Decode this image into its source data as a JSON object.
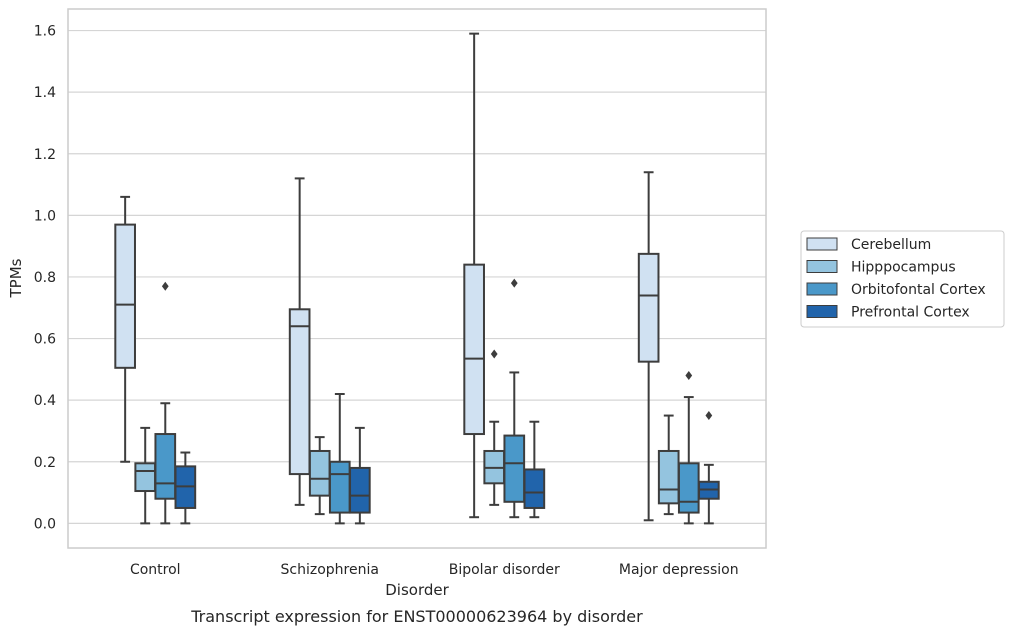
{
  "caption": "Transcript expression for ENST00000623964 by disorder",
  "chart_data": {
    "type": "box",
    "title": "",
    "xlabel": "Disorder",
    "ylabel": "TPMs",
    "ylim": [
      -0.08,
      1.67
    ],
    "yticks": [
      0.0,
      0.2,
      0.4,
      0.6,
      0.8,
      1.0,
      1.2,
      1.4,
      1.6
    ],
    "ytick_labels": [
      "0.0",
      "0.2",
      "0.4",
      "0.6",
      "0.8",
      "1.0",
      "1.2",
      "1.4",
      "1.6"
    ],
    "grid": "horizontal",
    "legend_position": "right",
    "categories": [
      "Control",
      "Schizophrenia",
      "Bipolar disorder",
      "Major depression"
    ],
    "series": [
      {
        "name": "Cerebellum",
        "color": "#d0e1f2",
        "boxes": [
          {
            "whisker_low": 0.2,
            "q1": 0.505,
            "median": 0.71,
            "q3": 0.97,
            "whisker_high": 1.06,
            "outliers": []
          },
          {
            "whisker_low": 0.06,
            "q1": 0.16,
            "median": 0.64,
            "q3": 0.695,
            "whisker_high": 1.12,
            "outliers": []
          },
          {
            "whisker_low": 0.02,
            "q1": 0.29,
            "median": 0.535,
            "q3": 0.84,
            "whisker_high": 1.59,
            "outliers": []
          },
          {
            "whisker_low": 0.01,
            "q1": 0.525,
            "median": 0.74,
            "q3": 0.875,
            "whisker_high": 1.14,
            "outliers": []
          }
        ]
      },
      {
        "name": "Hipppocampus",
        "color": "#94c4df",
        "boxes": [
          {
            "whisker_low": 0.0,
            "q1": 0.105,
            "median": 0.17,
            "q3": 0.195,
            "whisker_high": 0.31,
            "outliers": []
          },
          {
            "whisker_low": 0.03,
            "q1": 0.09,
            "median": 0.145,
            "q3": 0.235,
            "whisker_high": 0.28,
            "outliers": []
          },
          {
            "whisker_low": 0.06,
            "q1": 0.13,
            "median": 0.18,
            "q3": 0.235,
            "whisker_high": 0.33,
            "outliers": [
              0.55
            ]
          },
          {
            "whisker_low": 0.03,
            "q1": 0.065,
            "median": 0.11,
            "q3": 0.235,
            "whisker_high": 0.35,
            "outliers": []
          }
        ]
      },
      {
        "name": "Orbitofontal Cortex",
        "color": "#4a98c9",
        "boxes": [
          {
            "whisker_low": 0.0,
            "q1": 0.08,
            "median": 0.13,
            "q3": 0.29,
            "whisker_high": 0.39,
            "outliers": [
              0.77
            ]
          },
          {
            "whisker_low": 0.0,
            "q1": 0.035,
            "median": 0.16,
            "q3": 0.2,
            "whisker_high": 0.42,
            "outliers": []
          },
          {
            "whisker_low": 0.02,
            "q1": 0.07,
            "median": 0.195,
            "q3": 0.285,
            "whisker_high": 0.49,
            "outliers": [
              0.78
            ]
          },
          {
            "whisker_low": 0.0,
            "q1": 0.035,
            "median": 0.07,
            "q3": 0.195,
            "whisker_high": 0.41,
            "outliers": [
              0.48
            ]
          }
        ]
      },
      {
        "name": "Prefrontal Cortex",
        "color": "#2164ab",
        "boxes": [
          {
            "whisker_low": 0.0,
            "q1": 0.05,
            "median": 0.12,
            "q3": 0.185,
            "whisker_high": 0.23,
            "outliers": []
          },
          {
            "whisker_low": 0.0,
            "q1": 0.035,
            "median": 0.09,
            "q3": 0.18,
            "whisker_high": 0.31,
            "outliers": []
          },
          {
            "whisker_low": 0.02,
            "q1": 0.05,
            "median": 0.1,
            "q3": 0.175,
            "whisker_high": 0.33,
            "outliers": []
          },
          {
            "whisker_low": 0.0,
            "q1": 0.08,
            "median": 0.11,
            "q3": 0.135,
            "whisker_high": 0.19,
            "outliers": [
              0.35
            ]
          }
        ]
      }
    ]
  }
}
